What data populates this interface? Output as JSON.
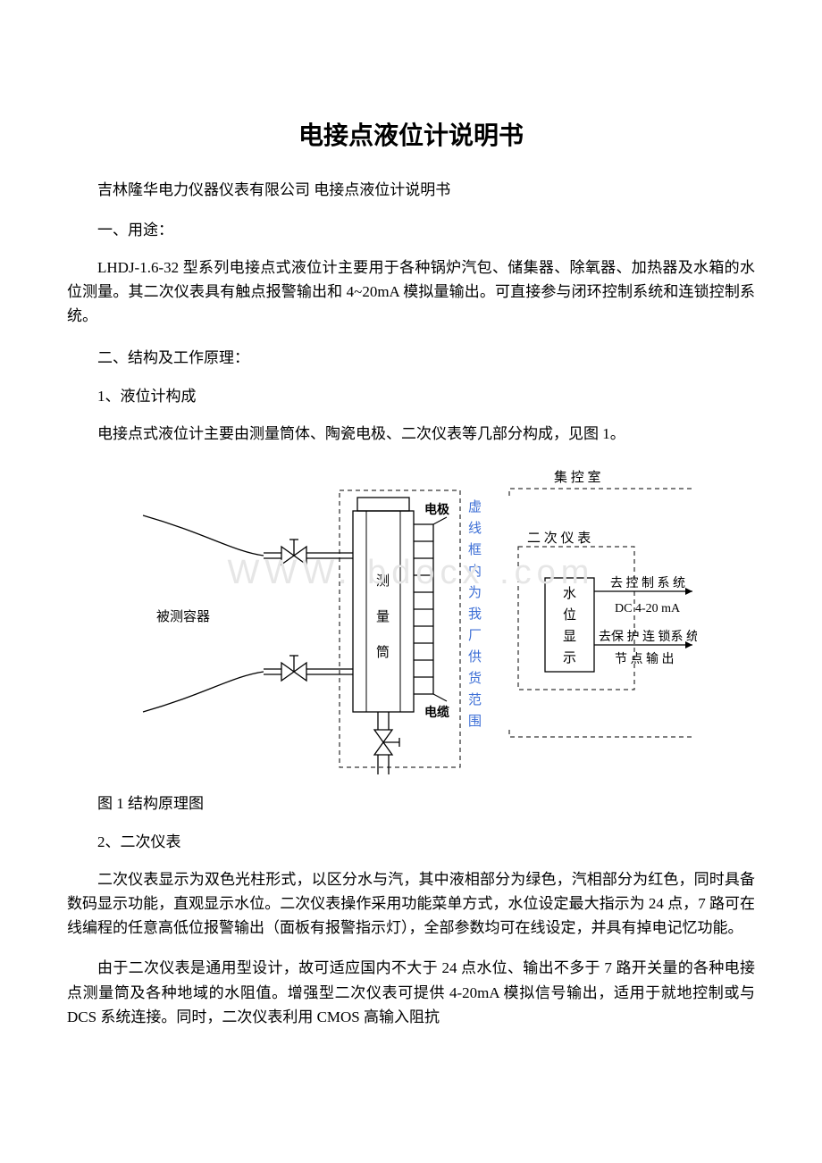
{
  "title": "电接点液位计说明书",
  "subtitle": "吉林隆华电力仪器仪表有限公司 电接点液位计说明书",
  "section1_heading": "一、用途：",
  "para1": "LHDJ-1.6-32 型系列电接点式液位计主要用于各种锅炉汽包、储集器、除氧器、加热器及水箱的水位测量。其二次仪表具有触点报警输出和 4~20mA 模拟量输出。可直接参与闭环控制系统和连锁控制系统。",
  "section2_heading": "二、结构及工作原理：",
  "sub1": "1、液位计构成",
  "para2": "电接点式液位计主要由测量筒体、陶瓷电极、二次仪表等几部分构成，见图 1。",
  "caption": "图 1 结构原理图",
  "sub2": "2、二次仪表",
  "para3": "二次仪表显示为双色光柱形式，以区分水与汽，其中液相部分为绿色，汽相部分为红色，同时具备数码显示功能，直观显示水位。二次仪表操作采用功能菜单方式，水位设定最大指示为 24 点，7 路可在线编程的任意高低位报警输出（面板有报警指示灯），全部参数均可在线设定，并具有掉电记忆功能。",
  "para4": "由于二次仪表是通用型设计，故可适应国内不大于 24 点水位、输出不多于 7 路开关量的各种电接点测量筒及各种地域的水阻值。增强型二次仪表可提供 4-20mA 模拟信号输出，适用于就地控制或与 DCS 系统连接。同时，二次仪表利用 CMOS 高输入阻抗",
  "watermark": "WWW. bdocx .com",
  "diagram": {
    "stroke": "#000000",
    "stroke_width": 1.3,
    "blue_text_color": "#3d6fd6",
    "font_size": 15,
    "font_size_small": 14,
    "labels": {
      "vessel": "被测容器",
      "cylinder": "测 量 筒",
      "electrode": "电极",
      "cable": "电缆",
      "control_room": "集 控 室",
      "panel": "二 次 仪 表",
      "display": "水 位 显 示",
      "to_control": "去 控 制 系 统",
      "dc_signal": "DC 4-20 mA",
      "to_protect": "去保 护 连 锁系 统",
      "node_out": "节 点 输 出",
      "blue_v": "虚 线 框 内 为 我 厂 供 货 范 围"
    }
  }
}
